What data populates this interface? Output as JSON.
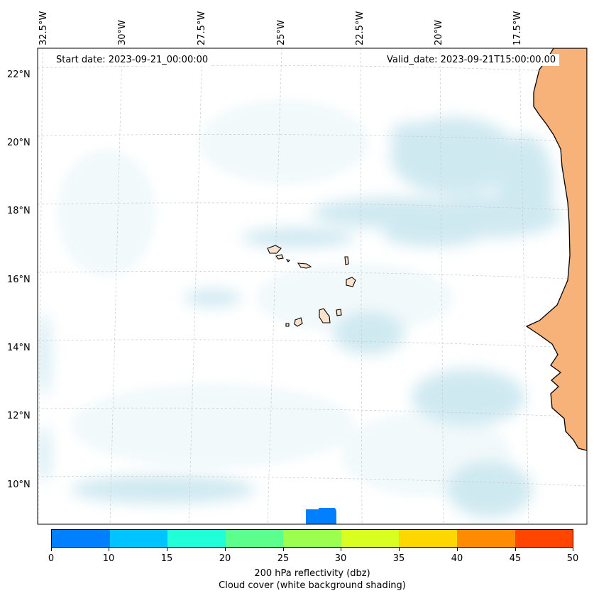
{
  "map": {
    "start_date": "Start date: 2023-09-21_00:00:00",
    "valid_date": "Valid_date: 2023-09-21T15:00:00.00",
    "lon_labels": [
      "32.5°W",
      "30°W",
      "27.5°W",
      "25°W",
      "22.5°W",
      "20°W",
      "17.5°W"
    ],
    "lat_labels": [
      "22°N",
      "20°N",
      "18°N",
      "16°N",
      "14°N",
      "12°N",
      "10°N"
    ],
    "land_fill_color": "#f7b27a",
    "island_fill_color": "#fbe2cc",
    "cloud_color": "#a9d8e6",
    "coastline_color": "#000000",
    "gridline_style": "dashed-light-gray"
  },
  "colorbar": {
    "ticks": [
      "0",
      "5",
      "10",
      "15",
      "20",
      "25",
      "30",
      "35",
      "40",
      "45",
      "50"
    ],
    "tick_labels": [
      "0",
      "10",
      "15",
      "20",
      "25",
      "30",
      "35",
      "40",
      "45",
      "50"
    ],
    "colors": [
      "#0080ff",
      "#00c4ff",
      "#20ffd8",
      "#5cff8c",
      "#9cff50",
      "#d8ff20",
      "#ffd700",
      "#ff8c00",
      "#ff4500"
    ],
    "label_line1": "200 hPa reflectivity (dbz)",
    "label_line2": "Cloud cover (white background shading)"
  }
}
